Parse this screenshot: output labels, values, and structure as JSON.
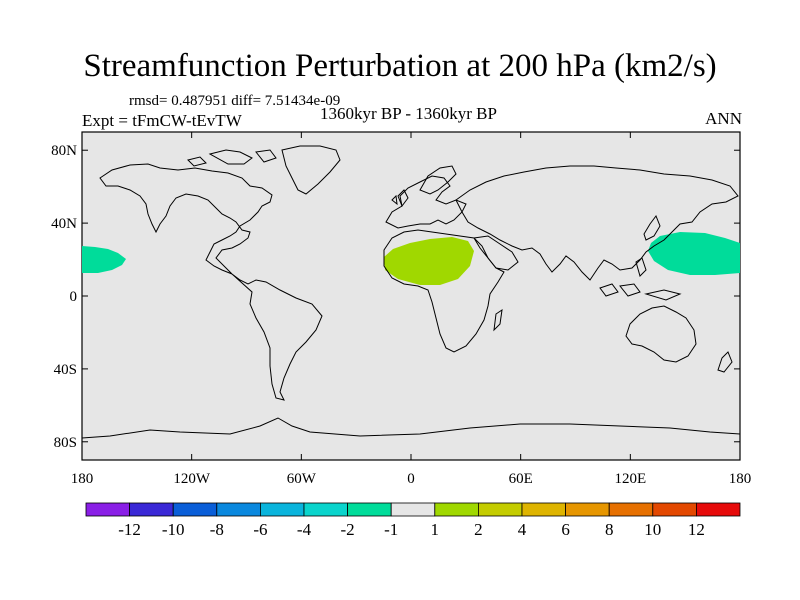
{
  "title": "Streamfunction Perturbation at 200 hPa (km2/s)",
  "stats": "rmsd= 0.487951 diff= 7.51434e-09",
  "left_label": "Expt = tFmCW-tEvTW",
  "center_label": "1360kyr BP - 1360kyr BP",
  "right_label": "ANN",
  "y_ticks": [
    {
      "label": "80N",
      "lat": 80
    },
    {
      "label": "40N",
      "lat": 40
    },
    {
      "label": "0",
      "lat": 0
    },
    {
      "label": "40S",
      "lat": -40
    },
    {
      "label": "80S",
      "lat": -80
    }
  ],
  "x_ticks": [
    {
      "label": "180",
      "lon": -180
    },
    {
      "label": "120W",
      "lon": -120
    },
    {
      "label": "60W",
      "lon": -60
    },
    {
      "label": "0",
      "lon": 0
    },
    {
      "label": "60E",
      "lon": 60
    },
    {
      "label": "120E",
      "lon": 120
    },
    {
      "label": "180",
      "lon": 180
    }
  ],
  "map_colors": {
    "ocean_background": "#e6e6e6",
    "coastline": "#000000"
  },
  "shaded_regions": [
    {
      "name": "north-africa-positive",
      "color": "#a0d800",
      "class": "1 to 2"
    },
    {
      "name": "west-pacific-negative",
      "color": "#00dc9a",
      "class": "-2 to -1"
    },
    {
      "name": "east-pacific-negative",
      "color": "#00dc9a",
      "class": "-2 to -1"
    }
  ],
  "colorbar": {
    "colors": [
      "#8a1fe6",
      "#3a28d6",
      "#0a5ed8",
      "#0a88de",
      "#0ab4dc",
      "#0ad4cc",
      "#00dc9a",
      "#e6e6e6",
      "#a0d800",
      "#c4cc00",
      "#deb400",
      "#e69600",
      "#e67000",
      "#e34800",
      "#e60a0a"
    ],
    "labels": [
      "-12",
      "-10",
      "-8",
      "-6",
      "-4",
      "-2",
      "-1",
      "1",
      "2",
      "4",
      "6",
      "8",
      "10",
      "12"
    ]
  }
}
